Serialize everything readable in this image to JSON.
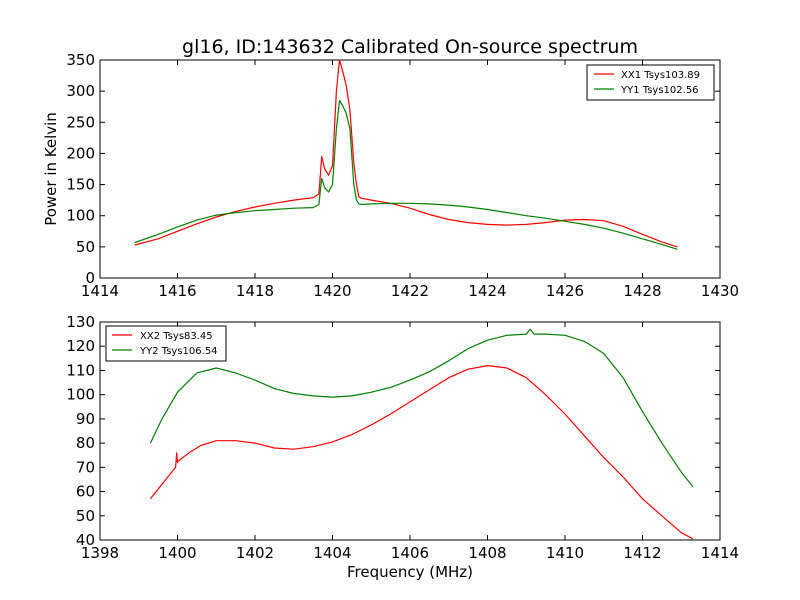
{
  "chart_data": [
    {
      "type": "line",
      "title": "gl16, ID:143632 Calibrated On-source spectrum",
      "xlabel": "",
      "ylabel": "Power in Kelvin",
      "xlim": [
        1414,
        1430
      ],
      "ylim": [
        0,
        350
      ],
      "xticks": [
        1414,
        1416,
        1418,
        1420,
        1422,
        1424,
        1426,
        1428,
        1430
      ],
      "yticks": [
        0,
        50,
        100,
        150,
        200,
        250,
        300,
        350
      ],
      "legend_position": "top-right",
      "series": [
        {
          "name": "XX1 Tsys103.89",
          "color": "#ff0000",
          "x": [
            1414.9,
            1415.5,
            1416.0,
            1416.5,
            1417.0,
            1417.5,
            1418.0,
            1418.5,
            1419.0,
            1419.5,
            1419.65,
            1419.72,
            1419.8,
            1419.9,
            1420.0,
            1420.1,
            1420.18,
            1420.25,
            1420.35,
            1420.45,
            1420.55,
            1420.62,
            1420.68,
            1420.75,
            1421.0,
            1421.5,
            1422.0,
            1422.5,
            1423.0,
            1423.5,
            1424.0,
            1424.5,
            1425.0,
            1425.5,
            1426.0,
            1426.5,
            1427.0,
            1427.5,
            1428.0,
            1428.5,
            1428.9
          ],
          "values": [
            53,
            63,
            75,
            87,
            98,
            107,
            114,
            120,
            125,
            129,
            135,
            195,
            175,
            165,
            180,
            300,
            350,
            335,
            310,
            270,
            185,
            150,
            130,
            128,
            125,
            120,
            112,
            102,
            94,
            89,
            86,
            85,
            86,
            89,
            93,
            94,
            92,
            83,
            70,
            58,
            50
          ]
        },
        {
          "name": "YY1 Tsys102.56",
          "color": "#008000",
          "x": [
            1414.9,
            1415.5,
            1416.0,
            1416.5,
            1417.0,
            1417.5,
            1418.0,
            1418.5,
            1419.0,
            1419.5,
            1419.65,
            1419.72,
            1419.8,
            1419.9,
            1420.0,
            1420.1,
            1420.18,
            1420.25,
            1420.35,
            1420.45,
            1420.55,
            1420.62,
            1420.68,
            1420.75,
            1421.0,
            1421.5,
            1422.0,
            1422.5,
            1423.0,
            1423.5,
            1424.0,
            1424.5,
            1425.0,
            1425.5,
            1426.0,
            1426.5,
            1427.0,
            1427.5,
            1428.0,
            1428.5,
            1428.9
          ],
          "values": [
            57,
            70,
            82,
            93,
            101,
            105,
            108,
            110,
            112,
            113,
            118,
            160,
            145,
            138,
            150,
            240,
            285,
            278,
            265,
            240,
            150,
            125,
            119,
            118,
            119,
            120,
            120,
            119,
            117,
            114,
            110,
            105,
            100,
            96,
            91,
            86,
            80,
            72,
            63,
            54,
            46
          ]
        }
      ]
    },
    {
      "type": "line",
      "title": "",
      "xlabel": "Frequency (MHz)",
      "ylabel": "",
      "xlim": [
        1398,
        1414
      ],
      "ylim": [
        40,
        130
      ],
      "xticks": [
        1398,
        1400,
        1402,
        1404,
        1406,
        1408,
        1410,
        1412,
        1414
      ],
      "yticks": [
        40,
        50,
        60,
        70,
        80,
        90,
        100,
        110,
        120,
        130
      ],
      "legend_position": "top-left",
      "series": [
        {
          "name": "XX2 Tsys83.45",
          "color": "#ff0000",
          "x": [
            1399.3,
            1399.6,
            1399.95,
            1399.98,
            1400.0,
            1400.05,
            1400.3,
            1400.6,
            1401.0,
            1401.5,
            1402.0,
            1402.5,
            1403.0,
            1403.5,
            1404.0,
            1404.5,
            1405.0,
            1405.5,
            1406.0,
            1406.5,
            1407.0,
            1407.5,
            1408.0,
            1408.5,
            1409.0,
            1409.5,
            1410.0,
            1410.5,
            1411.0,
            1411.5,
            1412.0,
            1412.5,
            1413.0,
            1413.3
          ],
          "values": [
            57,
            63,
            70,
            76,
            72,
            73,
            76,
            79,
            81,
            81,
            80,
            78,
            77.5,
            78.5,
            80.5,
            83.5,
            87.5,
            92,
            97,
            102,
            107,
            110.5,
            112,
            111,
            107,
            100,
            92,
            83,
            74,
            66,
            57,
            50,
            43,
            40.5
          ]
        },
        {
          "name": "YY2 Tsys106.54",
          "color": "#008000",
          "x": [
            1399.3,
            1399.6,
            1400.0,
            1400.5,
            1401.0,
            1401.5,
            1402.0,
            1402.5,
            1403.0,
            1403.5,
            1404.0,
            1404.5,
            1405.0,
            1405.5,
            1406.0,
            1406.5,
            1407.0,
            1407.5,
            1408.0,
            1408.5,
            1409.0,
            1409.1,
            1409.2,
            1409.5,
            1410.0,
            1410.5,
            1411.0,
            1411.5,
            1412.0,
            1412.5,
            1413.0,
            1413.3
          ],
          "values": [
            80,
            90,
            101,
            109,
            111,
            109,
            106,
            102.5,
            100.5,
            99.5,
            99,
            99.5,
            101,
            103,
            106,
            109.5,
            114,
            119,
            122.5,
            124.5,
            125,
            127,
            125,
            125,
            124.5,
            122,
            117,
            107,
            93,
            80,
            68,
            62
          ]
        }
      ]
    }
  ]
}
